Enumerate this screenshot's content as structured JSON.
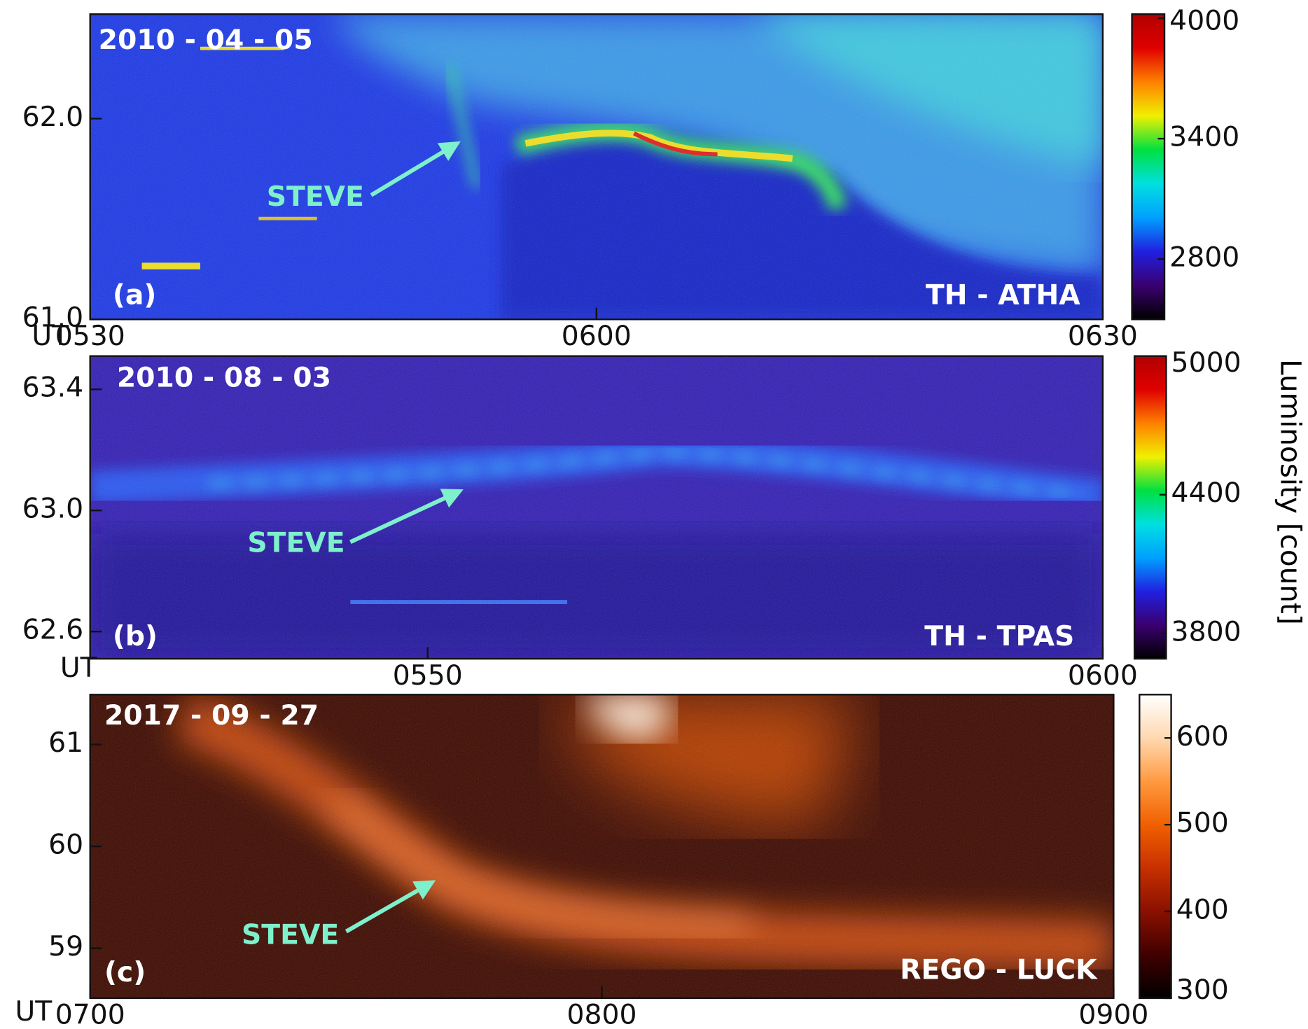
{
  "chart_data": [
    {
      "type": "heatmap",
      "title": "2010 - 04 - 05",
      "station": "TH - ATHA",
      "panel_label": "(a)",
      "annotation": "STEVE",
      "x_label": "UT",
      "xlim": [
        330,
        390
      ],
      "xticks": [
        {
          "value": 330,
          "label": "0530"
        },
        {
          "value": 360,
          "label": "0600"
        },
        {
          "value": 390,
          "label": "0630"
        }
      ],
      "ylim": [
        61.0,
        62.52
      ],
      "yticks": [
        {
          "value": 61,
          "label": "61.0"
        },
        {
          "value": 62,
          "label": "62.0"
        }
      ],
      "colormap": [
        "#000000",
        "#3a0070",
        "#2020e0",
        "#00a0ff",
        "#00e0e0",
        "#00e040",
        "#f0f000",
        "#ff8000",
        "#e00000",
        "#b00000"
      ],
      "clim": [
        2500,
        4020
      ],
      "cticks": [
        2800,
        3400,
        4000
      ]
    },
    {
      "type": "heatmap",
      "title": "2010 - 08 - 03",
      "station": "TH - TPAS",
      "panel_label": "(b)",
      "annotation": "STEVE",
      "x_label": "UT",
      "xlim": [
        345,
        360
      ],
      "xticks": [
        {
          "value": 350,
          "label": "0550"
        },
        {
          "value": 360,
          "label": "0600"
        }
      ],
      "ylim": [
        62.51,
        63.51
      ],
      "yticks": [
        62.6,
        {
          "value": 63,
          "label": "63.0"
        },
        63.4
      ],
      "colormap": [
        "#000000",
        "#3a0070",
        "#2020e0",
        "#00a0ff",
        "#00e0e0",
        "#00e040",
        "#f0f000",
        "#ff8000",
        "#e00000",
        "#b00000"
      ],
      "clim": [
        3690,
        5000
      ],
      "cticks": [
        3800,
        4400,
        5000
      ],
      "colorbar_label": "Luminosity [count]"
    },
    {
      "type": "heatmap",
      "title": "2017 - 09 - 27",
      "station": "REGO - LUCK",
      "panel_label": "(c)",
      "annotation": "STEVE",
      "x_label": "UT",
      "xlim": [
        420,
        540
      ],
      "xticks": [
        {
          "value": 420,
          "label": "0700"
        },
        {
          "value": 480,
          "label": "0800"
        },
        {
          "value": 540,
          "label": "0900"
        }
      ],
      "ylim": [
        58.51,
        61.49
      ],
      "yticks": [
        59,
        60,
        61
      ],
      "colormap": [
        "#000000",
        "#400000",
        "#8a1000",
        "#c83000",
        "#f06000",
        "#ff9a40",
        "#ffd8b0",
        "#ffffff"
      ],
      "clim": [
        300,
        650
      ],
      "cticks": [
        300,
        400,
        500,
        600
      ]
    }
  ]
}
